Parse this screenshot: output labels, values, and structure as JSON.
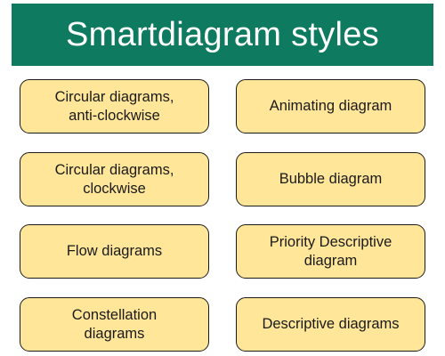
{
  "title": "Smartdiagram styles",
  "colors": {
    "header_background": "#0e7a5f",
    "header_text": "#ffffff",
    "box_fill": "#ffe699",
    "box_border": "#1a1a1a",
    "box_text": "#1a1a1a"
  },
  "styles": [
    {
      "label": "Circular diagrams,\nanti-clockwise"
    },
    {
      "label": "Animating diagram"
    },
    {
      "label": "Circular diagrams,\nclockwise"
    },
    {
      "label": "Bubble diagram"
    },
    {
      "label": "Flow diagrams"
    },
    {
      "label": "Priority Descriptive\ndiagram"
    },
    {
      "label": "Constellation\ndiagrams"
    },
    {
      "label": "Descriptive diagrams"
    }
  ]
}
